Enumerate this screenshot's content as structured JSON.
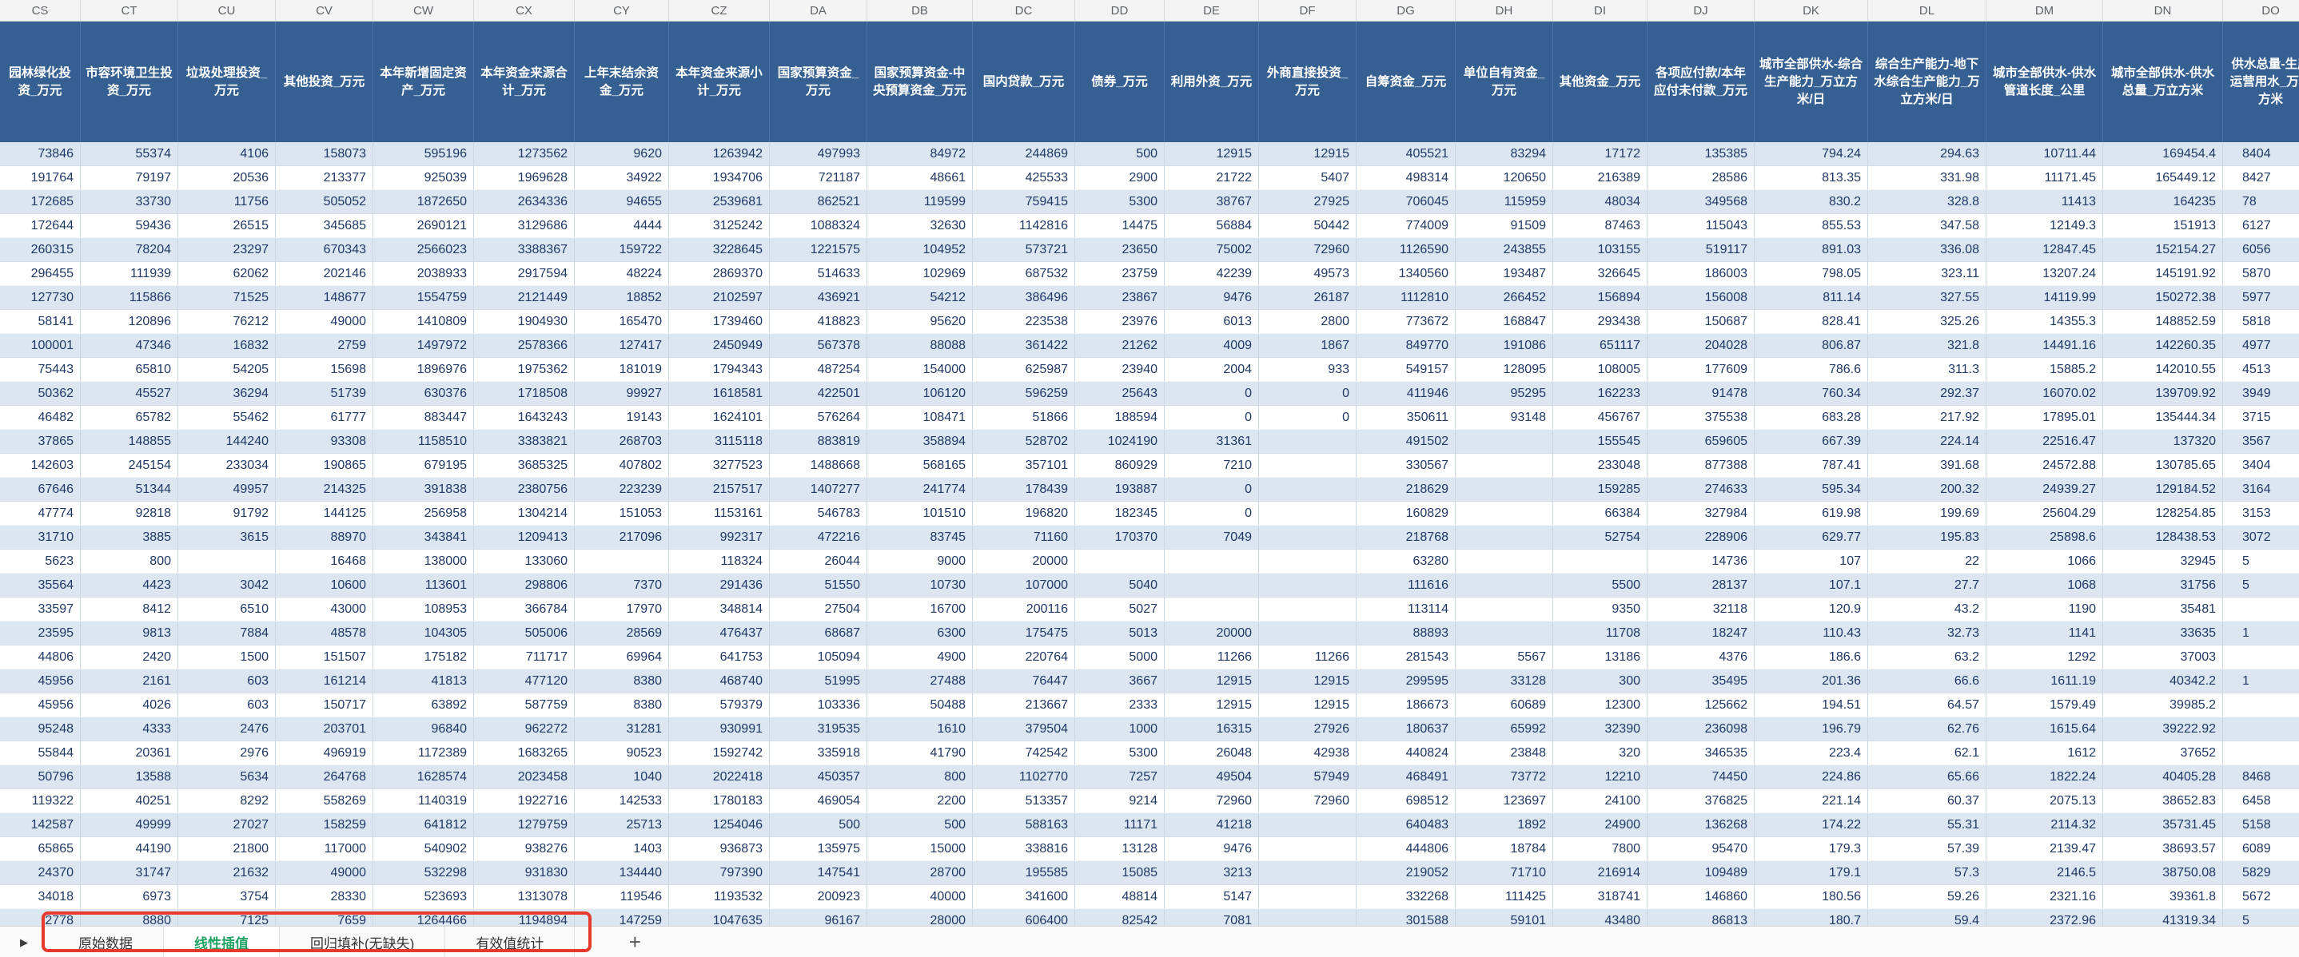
{
  "sheet": {
    "column_letters": [
      "CS",
      "CT",
      "CU",
      "CV",
      "CW",
      "CX",
      "CY",
      "CZ",
      "DA",
      "DB",
      "DC",
      "DD",
      "DE",
      "DF",
      "DG",
      "DH",
      "DI",
      "DJ",
      "DK",
      "DL",
      "DM",
      "DN",
      "DO"
    ],
    "headers": [
      "园林绿化投资_万元",
      "市容环境卫生投资_万元",
      "垃圾处理投资_万元",
      "其他投资_万元",
      "本年新增固定资产_万元",
      "本年资金来源合计_万元",
      "上年末结余资金_万元",
      "本年资金来源小计_万元",
      "国家预算资金_万元",
      "国家预算资金-中央预算资金_万元",
      "国内贷款_万元",
      "债券_万元",
      "利用外资_万元",
      "外商直接投资_万元",
      "自筹资金_万元",
      "单位自有资金_万元",
      "其他资金_万元",
      "各项应付款/本年应付未付款_万元",
      "城市全部供水-综合生产能力_万立方米/日",
      "综合生产能力-地下水综合生产能力_万立方米/日",
      "城市全部供水-供水管道长度_公里",
      "城市全部供水-供水总量_万立方米",
      "供水总量-生产运营用水_万立方米"
    ],
    "rows": [
      [
        "73846",
        "55374",
        "4106",
        "158073",
        "595196",
        "1273562",
        "9620",
        "1263942",
        "497993",
        "84972",
        "244869",
        "500",
        "12915",
        "12915",
        "405521",
        "83294",
        "17172",
        "135385",
        "794.24",
        "294.63",
        "10711.44",
        "169454.4",
        "8404"
      ],
      [
        "191764",
        "79197",
        "20536",
        "213377",
        "925039",
        "1969628",
        "34922",
        "1934706",
        "721187",
        "48661",
        "425533",
        "2900",
        "21722",
        "5407",
        "498314",
        "120650",
        "216389",
        "28586",
        "813.35",
        "331.98",
        "11171.45",
        "165449.12",
        "8427"
      ],
      [
        "172685",
        "33730",
        "11756",
        "505052",
        "1872650",
        "2634336",
        "94655",
        "2539681",
        "862521",
        "119599",
        "759415",
        "5300",
        "38767",
        "27925",
        "706045",
        "115959",
        "48034",
        "349568",
        "830.2",
        "328.8",
        "11413",
        "164235",
        "78"
      ],
      [
        "172644",
        "59436",
        "26515",
        "345685",
        "2690121",
        "3129686",
        "4444",
        "3125242",
        "1088324",
        "32630",
        "1142816",
        "14475",
        "56884",
        "50442",
        "774009",
        "91509",
        "87463",
        "115043",
        "855.53",
        "347.58",
        "12149.3",
        "151913",
        "6127"
      ],
      [
        "260315",
        "78204",
        "23297",
        "670343",
        "2566023",
        "3388367",
        "159722",
        "3228645",
        "1221575",
        "104952",
        "573721",
        "23650",
        "75002",
        "72960",
        "1126590",
        "243855",
        "103155",
        "519117",
        "891.03",
        "336.08",
        "12847.45",
        "152154.27",
        "6056"
      ],
      [
        "296455",
        "111939",
        "62062",
        "202146",
        "2038933",
        "2917594",
        "48224",
        "2869370",
        "514633",
        "102969",
        "687532",
        "23759",
        "42239",
        "49573",
        "1340560",
        "193487",
        "326645",
        "186003",
        "798.05",
        "323.11",
        "13207.24",
        "145191.92",
        "5870"
      ],
      [
        "127730",
        "115866",
        "71525",
        "148677",
        "1554759",
        "2121449",
        "18852",
        "2102597",
        "436921",
        "54212",
        "386496",
        "23867",
        "9476",
        "26187",
        "1112810",
        "266452",
        "156894",
        "156008",
        "811.14",
        "327.55",
        "14119.99",
        "150272.38",
        "5977"
      ],
      [
        "58141",
        "120896",
        "76212",
        "49000",
        "1410809",
        "1904930",
        "165470",
        "1739460",
        "418823",
        "95620",
        "223538",
        "23976",
        "6013",
        "2800",
        "773672",
        "168847",
        "293438",
        "150687",
        "828.41",
        "325.26",
        "14355.3",
        "148852.59",
        "5818"
      ],
      [
        "100001",
        "47346",
        "16832",
        "2759",
        "1497972",
        "2578366",
        "127417",
        "2450949",
        "567378",
        "88088",
        "361422",
        "21262",
        "4009",
        "1867",
        "849770",
        "191086",
        "651117",
        "204028",
        "806.87",
        "321.8",
        "14491.16",
        "142260.35",
        "4977"
      ],
      [
        "75443",
        "65810",
        "54205",
        "15698",
        "1896976",
        "1975362",
        "181019",
        "1794343",
        "487254",
        "154000",
        "625987",
        "23940",
        "2004",
        "933",
        "549157",
        "128095",
        "108005",
        "177609",
        "786.6",
        "311.3",
        "15885.2",
        "142010.55",
        "4513"
      ],
      [
        "50362",
        "45527",
        "36294",
        "51739",
        "630376",
        "1718508",
        "99927",
        "1618581",
        "422501",
        "106120",
        "596259",
        "25643",
        "0",
        "0",
        "411946",
        "95295",
        "162233",
        "91478",
        "760.34",
        "292.37",
        "16070.02",
        "139709.92",
        "3949"
      ],
      [
        "46482",
        "65782",
        "55462",
        "61777",
        "883447",
        "1643243",
        "19143",
        "1624101",
        "576264",
        "108471",
        "51866",
        "188594",
        "0",
        "0",
        "350611",
        "93148",
        "456767",
        "375538",
        "683.28",
        "217.92",
        "17895.01",
        "135444.34",
        "3715"
      ],
      [
        "37865",
        "148855",
        "144240",
        "93308",
        "1158510",
        "3383821",
        "268703",
        "3115118",
        "883819",
        "358894",
        "528702",
        "1024190",
        "31361",
        "",
        "491502",
        "",
        "155545",
        "659605",
        "667.39",
        "224.14",
        "22516.47",
        "137320",
        "3567"
      ],
      [
        "142603",
        "245154",
        "233034",
        "190865",
        "679195",
        "3685325",
        "407802",
        "3277523",
        "1488668",
        "568165",
        "357101",
        "860929",
        "7210",
        "",
        "330567",
        "",
        "233048",
        "877388",
        "787.41",
        "391.68",
        "24572.88",
        "130785.65",
        "3404"
      ],
      [
        "67646",
        "51344",
        "49957",
        "214325",
        "391838",
        "2380756",
        "223239",
        "2157517",
        "1407277",
        "241774",
        "178439",
        "193887",
        "0",
        "",
        "218629",
        "",
        "159285",
        "274633",
        "595.34",
        "200.32",
        "24939.27",
        "129184.52",
        "3164"
      ],
      [
        "47774",
        "92818",
        "91792",
        "144125",
        "256958",
        "1304214",
        "151053",
        "1153161",
        "546783",
        "101510",
        "196820",
        "182345",
        "0",
        "",
        "160829",
        "",
        "66384",
        "327984",
        "619.98",
        "199.69",
        "25604.29",
        "128254.85",
        "3153"
      ],
      [
        "31710",
        "3885",
        "3615",
        "88970",
        "343841",
        "1209413",
        "217096",
        "992317",
        "472216",
        "83745",
        "71160",
        "170370",
        "7049",
        "",
        "218768",
        "",
        "52754",
        "228906",
        "629.77",
        "195.83",
        "25898.6",
        "128438.53",
        "3072"
      ],
      [
        "5623",
        "800",
        "",
        "16468",
        "138000",
        "133060",
        "",
        "118324",
        "26044",
        "9000",
        "20000",
        "",
        "",
        "",
        "63280",
        "",
        "",
        "14736",
        "107",
        "22",
        "1066",
        "32945",
        "5"
      ],
      [
        "35564",
        "4423",
        "3042",
        "10600",
        "113601",
        "298806",
        "7370",
        "291436",
        "51550",
        "10730",
        "107000",
        "5040",
        "",
        "",
        "111616",
        "",
        "5500",
        "28137",
        "107.1",
        "27.7",
        "1068",
        "31756",
        "5"
      ],
      [
        "33597",
        "8412",
        "6510",
        "43000",
        "108953",
        "366784",
        "17970",
        "348814",
        "27504",
        "16700",
        "200116",
        "5027",
        "",
        "",
        "113114",
        "",
        "9350",
        "32118",
        "120.9",
        "43.2",
        "1190",
        "35481",
        ""
      ],
      [
        "23595",
        "9813",
        "7884",
        "48578",
        "104305",
        "505006",
        "28569",
        "476437",
        "68687",
        "6300",
        "175475",
        "5013",
        "20000",
        "",
        "88893",
        "",
        "11708",
        "18247",
        "110.43",
        "32.73",
        "1141",
        "33635",
        "1"
      ],
      [
        "44806",
        "2420",
        "1500",
        "151507",
        "175182",
        "711717",
        "69964",
        "641753",
        "105094",
        "4900",
        "220764",
        "5000",
        "11266",
        "11266",
        "281543",
        "5567",
        "13186",
        "4376",
        "186.6",
        "63.2",
        "1292",
        "37003",
        ""
      ],
      [
        "45956",
        "2161",
        "603",
        "161214",
        "41813",
        "477120",
        "8380",
        "468740",
        "51995",
        "27488",
        "76447",
        "3667",
        "12915",
        "12915",
        "299595",
        "33128",
        "300",
        "35495",
        "201.36",
        "66.6",
        "1611.19",
        "40342.2",
        "1"
      ],
      [
        "45956",
        "4026",
        "603",
        "150717",
        "63892",
        "587759",
        "8380",
        "579379",
        "103336",
        "50488",
        "213667",
        "2333",
        "12915",
        "12915",
        "186673",
        "60689",
        "12300",
        "125662",
        "194.51",
        "64.57",
        "1579.49",
        "39985.2",
        ""
      ],
      [
        "95248",
        "4333",
        "2476",
        "203701",
        "96840",
        "962272",
        "31281",
        "930991",
        "319535",
        "1610",
        "379504",
        "1000",
        "16315",
        "27926",
        "180637",
        "65992",
        "32390",
        "236098",
        "196.79",
        "62.76",
        "1615.64",
        "39222.92",
        ""
      ],
      [
        "55844",
        "20361",
        "2976",
        "496919",
        "1172389",
        "1683265",
        "90523",
        "1592742",
        "335918",
        "41790",
        "742542",
        "5300",
        "26048",
        "42938",
        "440824",
        "23848",
        "320",
        "346535",
        "223.4",
        "62.1",
        "1612",
        "37652",
        ""
      ],
      [
        "50796",
        "13588",
        "5634",
        "264768",
        "1628574",
        "2023458",
        "1040",
        "2022418",
        "450357",
        "800",
        "1102770",
        "7257",
        "49504",
        "57949",
        "468491",
        "73772",
        "12210",
        "74450",
        "224.86",
        "65.66",
        "1822.24",
        "40405.28",
        "8468"
      ],
      [
        "119322",
        "40251",
        "8292",
        "558269",
        "1140319",
        "1922716",
        "142533",
        "1780183",
        "469054",
        "2200",
        "513357",
        "9214",
        "72960",
        "72960",
        "698512",
        "123697",
        "24100",
        "376825",
        "221.14",
        "60.37",
        "2075.13",
        "38652.83",
        "6458"
      ],
      [
        "142587",
        "49999",
        "27027",
        "158259",
        "641812",
        "1279759",
        "25713",
        "1254046",
        "500",
        "500",
        "588163",
        "11171",
        "41218",
        "",
        "640483",
        "1892",
        "24900",
        "136268",
        "174.22",
        "55.31",
        "2114.32",
        "35731.45",
        "5158"
      ],
      [
        "65865",
        "44190",
        "21800",
        "117000",
        "540902",
        "938276",
        "1403",
        "936873",
        "135975",
        "15000",
        "338816",
        "13128",
        "9476",
        "",
        "444806",
        "18784",
        "7800",
        "95470",
        "179.3",
        "57.39",
        "2139.47",
        "38693.57",
        "6089"
      ],
      [
        "24370",
        "31747",
        "21632",
        "49000",
        "532298",
        "931830",
        "134440",
        "797390",
        "147541",
        "28700",
        "195585",
        "15085",
        "3213",
        "",
        "219052",
        "71710",
        "216914",
        "109489",
        "179.1",
        "57.3",
        "2146.5",
        "38750.08",
        "5829"
      ],
      [
        "34018",
        "6973",
        "3754",
        "28330",
        "523693",
        "1313078",
        "119546",
        "1193532",
        "200923",
        "40000",
        "341600",
        "48814",
        "5147",
        "",
        "332268",
        "111425",
        "318741",
        "146860",
        "180.56",
        "59.26",
        "2321.16",
        "39361.8",
        "5672"
      ],
      [
        "2778",
        "8880",
        "7125",
        "7659",
        "1264466",
        "1194894",
        "147259",
        "1047635",
        "96167",
        "28000",
        "606400",
        "82542",
        "7081",
        "",
        "301588",
        "59101",
        "43480",
        "86813",
        "180.7",
        "59.4",
        "2372.96",
        "41319.34",
        "5"
      ]
    ]
  },
  "tabs": {
    "items": [
      {
        "label": "原始数据",
        "active": false
      },
      {
        "label": "线性插值",
        "active": true
      },
      {
        "label": "回归填补(无缺失)",
        "active": false
      },
      {
        "label": "有效值统计",
        "active": false
      }
    ],
    "add_label": "+",
    "scroll_icon": "▶"
  },
  "colors": {
    "header_bg": "#366092",
    "band": "#DCE6F1",
    "tab_active_text": "#21A366",
    "highlight": "#E8392F"
  }
}
